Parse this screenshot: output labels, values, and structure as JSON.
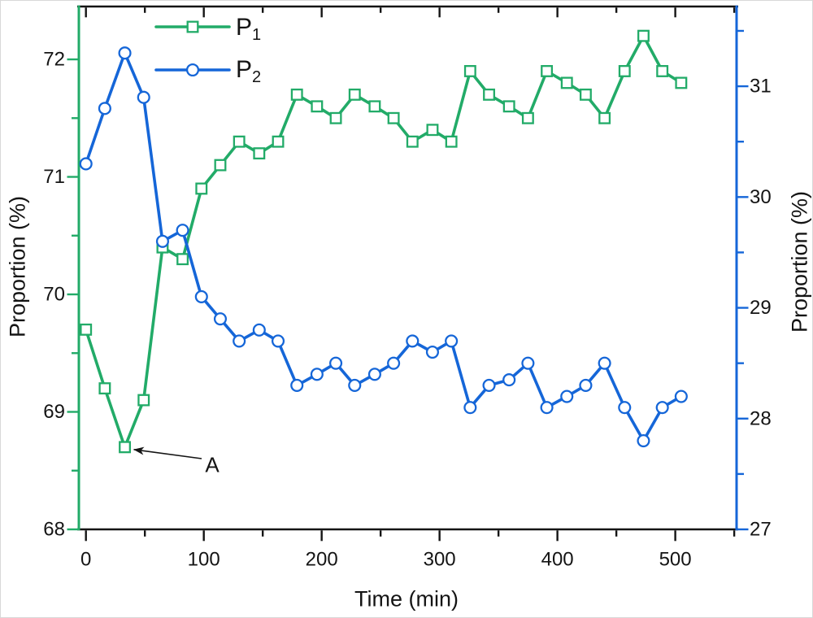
{
  "figure": {
    "axes": {
      "left_title": "Proportion (%)",
      "right_title": "Proportion (%)",
      "x_title": "Time (min)"
    },
    "legend": {
      "items": [
        {
          "id": "p1",
          "base": "P",
          "sub": "1",
          "color": "#22ab68",
          "marker": "square"
        },
        {
          "id": "p2",
          "base": "P",
          "sub": "2",
          "color": "#1566d8",
          "marker": "circle"
        }
      ]
    },
    "annotation": {
      "text": "A"
    }
  },
  "chart_data": {
    "type": "line",
    "title": "",
    "xlabel": "Time (min)",
    "ylabel_left": "Proportion (%)",
    "ylabel_right": "Proportion (%)",
    "grid": false,
    "legend_position": "top-left-inside",
    "xlim": [
      -6,
      552
    ],
    "ylim_left": [
      68,
      72.45
    ],
    "ylim_right": [
      27,
      31.72
    ],
    "x_ticks": [
      0,
      100,
      200,
      300,
      400,
      500
    ],
    "x_minor_ticks": [
      50,
      150,
      250,
      350,
      450,
      550
    ],
    "left_ticks": [
      68,
      69,
      70,
      71,
      72
    ],
    "left_minor_ticks": [
      68.5,
      69.5,
      70.5,
      71.5
    ],
    "right_ticks": [
      27,
      28,
      29,
      30,
      31
    ],
    "right_minor_ticks": [
      27.5,
      28.5,
      29.5,
      30.5,
      31.5
    ],
    "frame_color": "#141414",
    "left_axis_color": "#22ab68",
    "right_axis_color": "#1566d8",
    "x": [
      0,
      16,
      33,
      49,
      65,
      82,
      98,
      114,
      130,
      147,
      163,
      179,
      196,
      212,
      228,
      245,
      261,
      277,
      294,
      310,
      326,
      342,
      359,
      375,
      391,
      408,
      424,
      440,
      457,
      473,
      489,
      505
    ],
    "series": [
      {
        "name": "P1",
        "axis": "left",
        "color": "#22ab68",
        "marker": "square",
        "values": [
          69.7,
          69.2,
          68.7,
          69.1,
          70.4,
          70.3,
          70.9,
          71.1,
          71.3,
          71.2,
          71.3,
          71.7,
          71.6,
          71.5,
          71.7,
          71.6,
          71.5,
          71.3,
          71.4,
          71.3,
          71.9,
          71.7,
          71.6,
          71.5,
          71.9,
          71.8,
          71.7,
          71.5,
          71.9,
          72.2,
          71.9,
          71.8
        ]
      },
      {
        "name": "P2",
        "axis": "right",
        "color": "#1566d8",
        "marker": "circle",
        "values": [
          30.3,
          30.8,
          31.3,
          30.9,
          29.6,
          29.7,
          29.1,
          28.9,
          28.7,
          28.8,
          28.7,
          28.3,
          28.4,
          28.5,
          28.3,
          28.4,
          28.5,
          28.7,
          28.6,
          28.7,
          28.1,
          28.3,
          28.35,
          28.5,
          28.1,
          28.2,
          28.3,
          28.5,
          28.1,
          27.8,
          28.1,
          28.2
        ]
      }
    ],
    "annotation": {
      "text": "A",
      "series": "P1",
      "target_x": 33,
      "target_y": 68.7
    }
  }
}
